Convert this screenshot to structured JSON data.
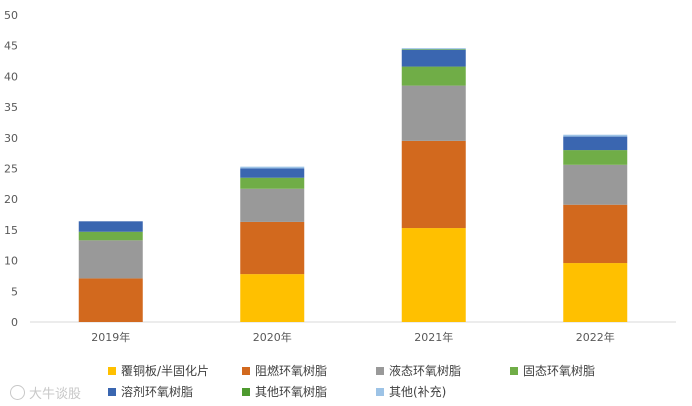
{
  "chart_data": {
    "type": "bar",
    "stacked": true,
    "categories": [
      "2019年",
      "2020年",
      "2021年",
      "2022年"
    ],
    "ylim": [
      0,
      50
    ],
    "yticks": [
      0,
      5,
      10,
      15,
      20,
      25,
      30,
      35,
      40,
      45,
      50
    ],
    "grid": false,
    "legend_position": "bottom",
    "series": [
      {
        "name": "覆铜板/半固化片",
        "color": "#FFC000",
        "values": [
          0,
          7.8,
          15.3,
          9.6
        ]
      },
      {
        "name": "阻燃环氧树脂",
        "color": "#D2691E",
        "values": [
          7.1,
          8.5,
          14.2,
          9.5
        ]
      },
      {
        "name": "液态环氧树脂",
        "color": "#999999",
        "values": [
          6.2,
          5.4,
          9.0,
          6.5
        ]
      },
      {
        "name": "固态环氧树脂",
        "color": "#70AD47",
        "values": [
          1.4,
          1.8,
          3.1,
          2.4
        ]
      },
      {
        "name": "溶剂环氧树脂",
        "color": "#3A66B0",
        "values": [
          1.7,
          1.5,
          2.7,
          2.2
        ]
      },
      {
        "name": "其他环氧树脂",
        "color": "#4E9A2F",
        "values": [
          0,
          0,
          0.1,
          0
        ]
      },
      {
        "name": "其他(补充)",
        "color": "#9DC3E6",
        "values": [
          0,
          0.3,
          0.2,
          0.3
        ]
      }
    ]
  },
  "watermark": "大牛谈股"
}
